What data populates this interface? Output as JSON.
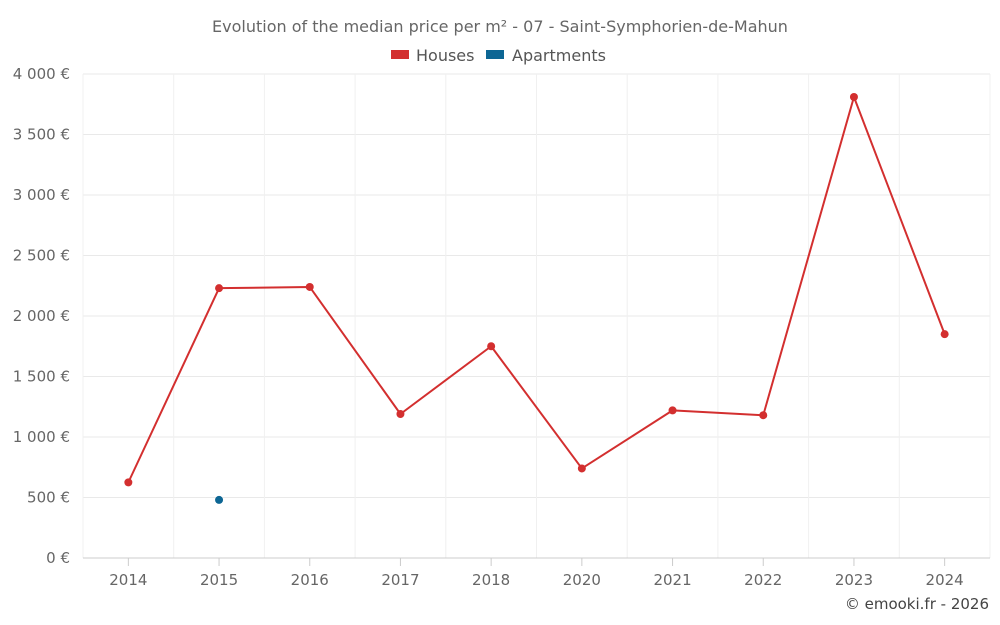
{
  "chart_data": {
    "type": "line",
    "title": "Evolution of the median price per m² - 07 - Saint-Symphorien-de-Mahun",
    "categories": [
      "2014",
      "2015",
      "2016",
      "2017",
      "2018",
      "2020",
      "2021",
      "2022",
      "2023",
      "2024"
    ],
    "y_ticks": [
      "0 €",
      "500 €",
      "1 000 €",
      "1 500 €",
      "2 000 €",
      "2 500 €",
      "3 000 €",
      "3 500 €",
      "4 000 €"
    ],
    "ylim": [
      0,
      4000
    ],
    "series": [
      {
        "name": "Houses",
        "color": "#d32f2f",
        "values": [
          625,
          2230,
          2240,
          1190,
          1750,
          740,
          1220,
          1180,
          3810,
          1850
        ]
      },
      {
        "name": "Apartments",
        "color": "#0d6694",
        "values": [
          null,
          480,
          null,
          null,
          null,
          null,
          null,
          null,
          null,
          null
        ]
      }
    ],
    "credit": "© emooki.fr - 2026"
  }
}
